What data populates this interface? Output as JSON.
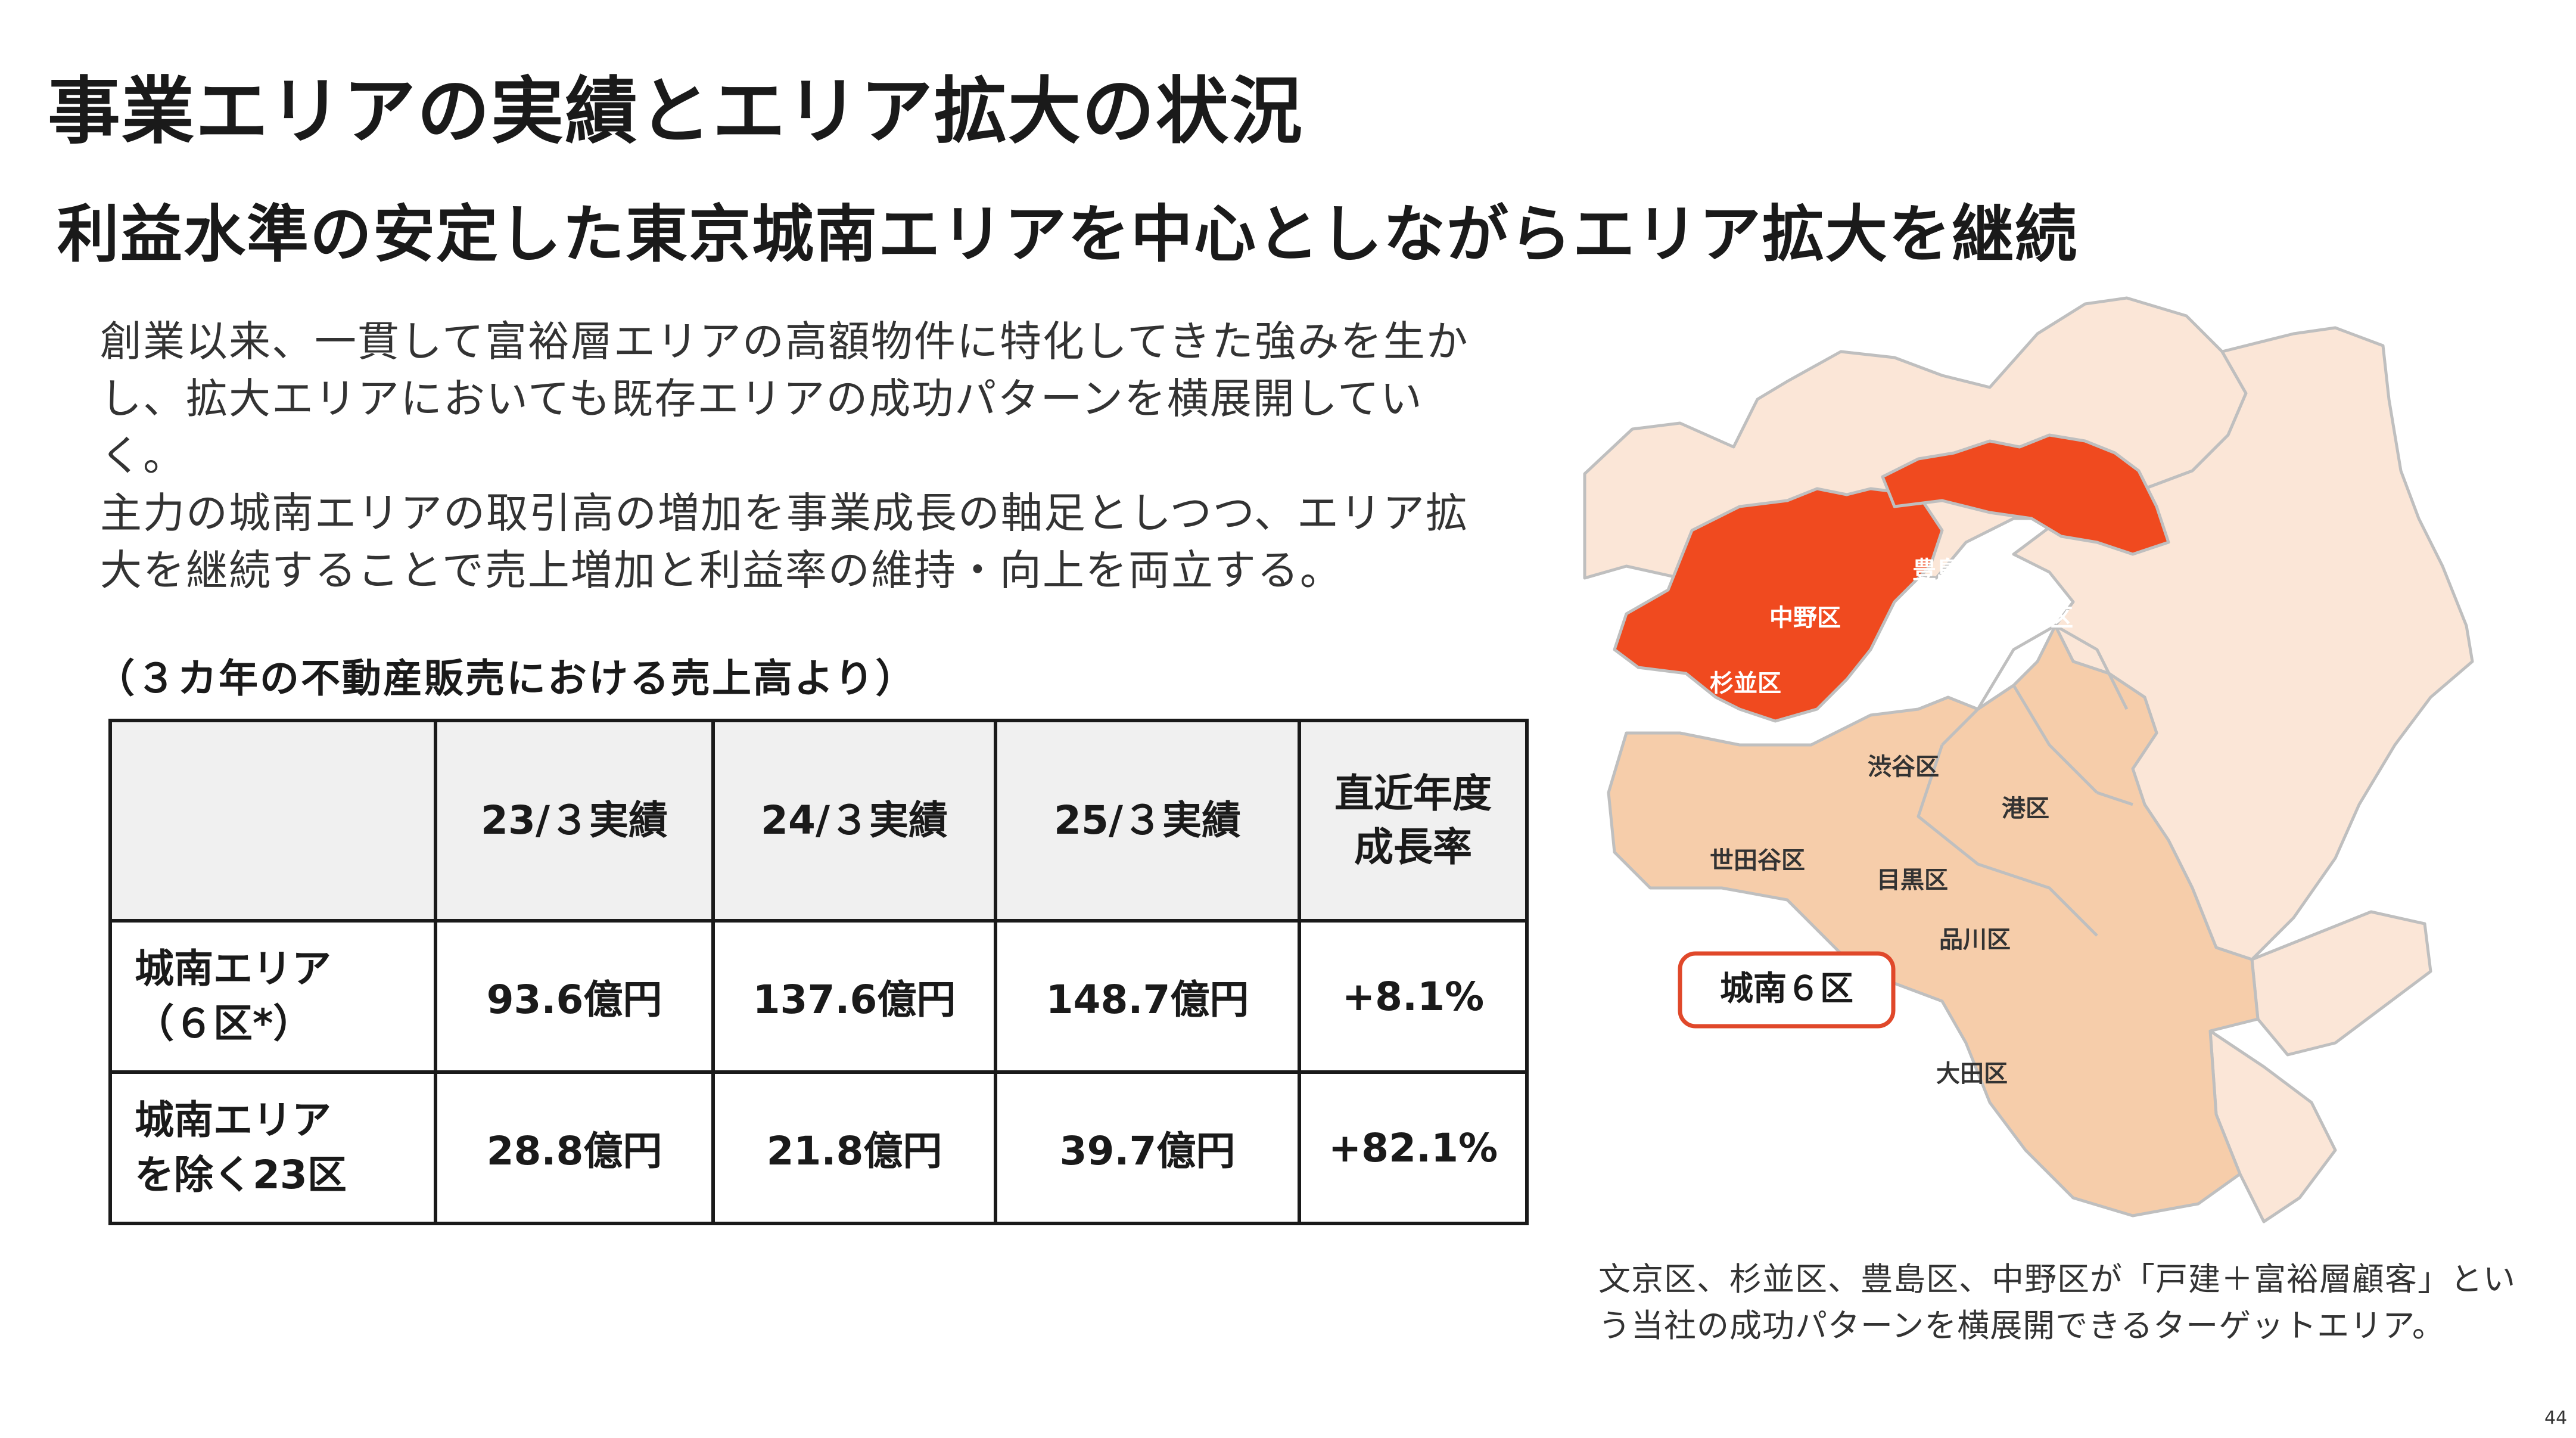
{
  "title": "事業エリアの実績とエリア拡大の状況",
  "subtitle": "利益水準の安定した東京城南エリアを中心としながらエリア拡大を継続",
  "body": [
    "創業以来、一貫して富裕層エリアの高額物件に特化してきた強みを生かし、拡大エリアにおいても既存エリアの成功パターンを横展開していく。",
    "主力の城南エリアの取引高の増加を事業成長の軸足としつつ、エリア拡大を継続することで売上増加と利益率の維持・向上を両立する。"
  ],
  "table_caption": "（３カ年の不動産販売における売上高より）",
  "table": {
    "headers": [
      "",
      "23/３実績",
      "24/３実績",
      "25/３実績",
      "直近年度\n成長率"
    ],
    "rows": [
      {
        "label": "城南エリア\n（６区*）",
        "values": [
          "93.6億円",
          "137.6億円",
          "148.7億円",
          "+8.1%"
        ]
      },
      {
        "label": "城南エリア\nを除く23区",
        "values": [
          "28.8億円",
          "21.8億円",
          "39.7億円",
          "+82.1%"
        ]
      }
    ]
  },
  "map": {
    "wards": {
      "suginami": "杉並区",
      "nakano": "中野区",
      "toshima": "豊島区",
      "bunkyo": "文京区",
      "shibuya": "渋谷区",
      "minato": "港区",
      "setagaya": "世田谷区",
      "meguro": "目黒区",
      "shinagawa": "品川区",
      "ota": "大田区"
    },
    "johnan_label": "城南６区",
    "colors": {
      "expansion": "#f04a1f",
      "johnan": "#f6cdaa",
      "other": "#fbe6d7",
      "border": "#bfbfbf"
    }
  },
  "note": "文京区、杉並区、豊島区、中野区が「戸建＋富裕層顧客」という当社の成功パターンを横展開できるターゲットエリア。",
  "page_number": "44"
}
